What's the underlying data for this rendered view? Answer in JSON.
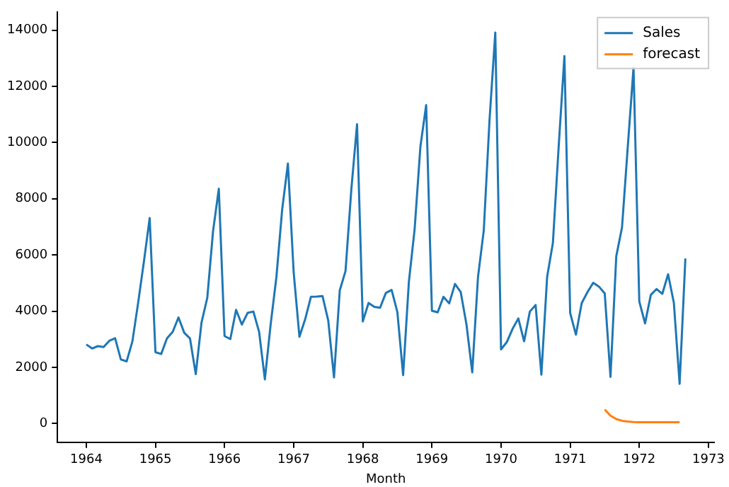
{
  "chart_data": {
    "type": "line",
    "xlabel": "Month",
    "legend": "top right",
    "grid": false,
    "marker": "none",
    "line_style": "solid",
    "xlim": [
      "1963-08",
      "1973-02"
    ],
    "xticks": [
      "1964",
      "1965",
      "1966",
      "1967",
      "1968",
      "1969",
      "1970",
      "1971",
      "1972",
      "1973"
    ],
    "ylim": [
      -666,
      14650
    ],
    "yticks": [
      0,
      2000,
      4000,
      6000,
      8000,
      10000,
      12000,
      14000
    ],
    "series": [
      {
        "name": "Sales",
        "color": "#1f77b4",
        "x": [
          "1964-01",
          "1964-02",
          "1964-03",
          "1964-04",
          "1964-05",
          "1964-06",
          "1964-07",
          "1964-08",
          "1964-09",
          "1964-10",
          "1964-11",
          "1964-12",
          "1965-01",
          "1965-02",
          "1965-03",
          "1965-04",
          "1965-05",
          "1965-06",
          "1965-07",
          "1965-08",
          "1965-09",
          "1965-10",
          "1965-11",
          "1965-12",
          "1966-01",
          "1966-02",
          "1966-03",
          "1966-04",
          "1966-05",
          "1966-06",
          "1966-07",
          "1966-08",
          "1966-09",
          "1966-10",
          "1966-11",
          "1966-12",
          "1967-01",
          "1967-02",
          "1967-03",
          "1967-04",
          "1967-05",
          "1967-06",
          "1967-07",
          "1967-08",
          "1967-09",
          "1967-10",
          "1967-11",
          "1967-12",
          "1968-01",
          "1968-02",
          "1968-03",
          "1968-04",
          "1968-05",
          "1968-06",
          "1968-07",
          "1968-08",
          "1968-09",
          "1968-10",
          "1968-11",
          "1968-12",
          "1969-01",
          "1969-02",
          "1969-03",
          "1969-04",
          "1969-05",
          "1969-06",
          "1969-07",
          "1969-08",
          "1969-09",
          "1969-10",
          "1969-11",
          "1969-12",
          "1970-01",
          "1970-02",
          "1970-03",
          "1970-04",
          "1970-05",
          "1970-06",
          "1970-07",
          "1970-08",
          "1970-09",
          "1970-10",
          "1970-11",
          "1970-12",
          "1971-01",
          "1971-02",
          "1971-03",
          "1971-04",
          "1971-05",
          "1971-06",
          "1971-07",
          "1971-08",
          "1971-09",
          "1971-10",
          "1971-11",
          "1971-12",
          "1972-01",
          "1972-02",
          "1972-03",
          "1972-04",
          "1972-05",
          "1972-06",
          "1972-07",
          "1972-08",
          "1972-09"
        ],
        "values": [
          2815,
          2672,
          2755,
          2721,
          2946,
          3036,
          2282,
          2212,
          2922,
          4301,
          5764,
          7312,
          2541,
          2475,
          3031,
          3266,
          3776,
          3230,
          3028,
          1759,
          3595,
          4474,
          6838,
          8357,
          3113,
          3006,
          4047,
          3523,
          3937,
          3986,
          3260,
          1573,
          3528,
          5211,
          7614,
          9254,
          5375,
          3088,
          3718,
          4514,
          4520,
          4539,
          3663,
          1643,
          4739,
          5428,
          8314,
          10651,
          3633,
          4292,
          4154,
          4121,
          4647,
          4753,
          3965,
          1723,
          5048,
          6922,
          9858,
          11331,
          4016,
          3957,
          4510,
          4276,
          4968,
          4677,
          3523,
          1821,
          5222,
          6872,
          10803,
          13916,
          2639,
          2899,
          3370,
          3740,
          2927,
          3986,
          4217,
          1738,
          5221,
          6424,
          9842,
          13076,
          3934,
          3162,
          4286,
          4676,
          5010,
          4874,
          4633,
          1659,
          5951,
          6981,
          9851,
          12670,
          4348,
          3564,
          4577,
          4788,
          4618,
          5312,
          4298,
          1413,
          5877
        ]
      },
      {
        "name": "forecast",
        "color": "#ff7f0e",
        "x": [
          "1971-07",
          "1971-08",
          "1971-09",
          "1971-10",
          "1971-11",
          "1971-12",
          "1972-01",
          "1972-02",
          "1972-03",
          "1972-04",
          "1972-05",
          "1972-06",
          "1972-07",
          "1972-08"
        ],
        "values": [
          500,
          280,
          160,
          100,
          70,
          55,
          50,
          45,
          45,
          45,
          45,
          45,
          45,
          45
        ]
      }
    ]
  }
}
